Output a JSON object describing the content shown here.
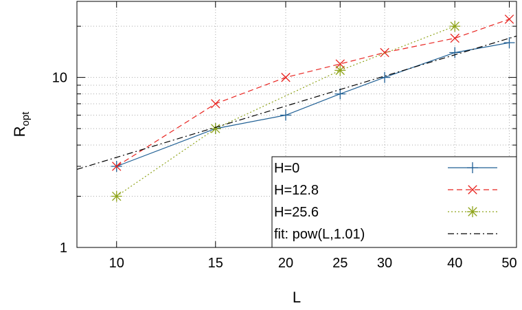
{
  "chart_data": {
    "type": "line",
    "x_scale": "log",
    "y_scale": "log",
    "xlabel": "L",
    "ylabel_main": "R",
    "ylabel_sub": "opt",
    "xlim": [
      8.5,
      51.5
    ],
    "ylim": [
      1,
      28
    ],
    "x_ticks": [
      10,
      15,
      20,
      25,
      30,
      40,
      50
    ],
    "x_tick_labels": [
      "10",
      "15",
      "20",
      "25",
      "30",
      "40",
      "50"
    ],
    "y_major_ticks": [
      1,
      10
    ],
    "y_tick_labels": [
      "1",
      "10"
    ],
    "y_minor_ticks": [
      2,
      3,
      4,
      5,
      6,
      7,
      8,
      9,
      20
    ],
    "grid": true,
    "legend_position": "bottom-right",
    "series": [
      {
        "name": "H=0",
        "color": "#1f5f94",
        "dash": "solid",
        "marker": "plus",
        "x": [
          10,
          15,
          20,
          25,
          30,
          40,
          50
        ],
        "y": [
          3,
          5,
          6,
          8,
          10,
          14,
          16
        ]
      },
      {
        "name": "H=12.8",
        "color": "#e8231f",
        "dash": "dashed",
        "marker": "cross",
        "x": [
          10,
          15,
          20,
          25,
          30,
          40,
          50
        ],
        "y": [
          3,
          7,
          10,
          12,
          14,
          17,
          22
        ]
      },
      {
        "name": "H=25.6",
        "color": "#8ea319",
        "dash": "dotted",
        "marker": "star",
        "x": [
          10,
          15,
          25,
          40
        ],
        "y": [
          2,
          5,
          11,
          20
        ]
      },
      {
        "name": "fit: pow(L,1.01)",
        "color": "#000000",
        "dash": "dashdot",
        "marker": "none",
        "x": [
          8.5,
          51.5
        ],
        "y": [
          2.88,
          17.5
        ]
      }
    ]
  }
}
